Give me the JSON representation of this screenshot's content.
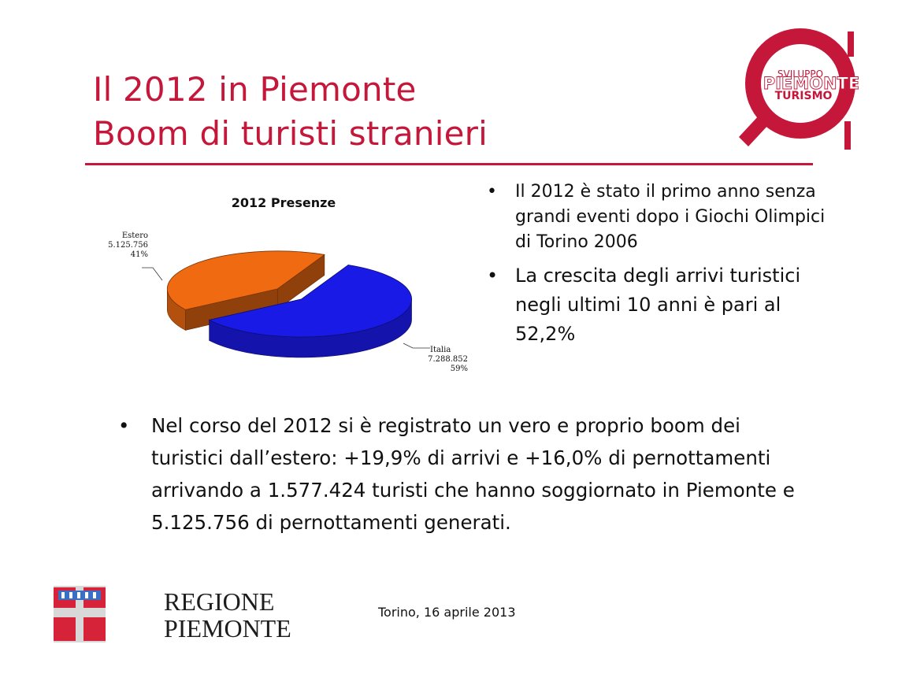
{
  "slide": {
    "title_line1": "Il 2012 in Piemonte",
    "title_line2": "Boom di turisti stranieri",
    "brand_logo": {
      "line1": "SVILUPPO",
      "line2": "PIEMONTE",
      "line3": "TURISMO",
      "color": "#c4173a"
    },
    "bullets_right": [
      "Il 2012 è stato il primo anno senza grandi eventi dopo i Giochi Olimpici di Torino 2006",
      "La crescita degli arrivi turistici negli ultimi 10 anni è pari al 52,2%"
    ],
    "bullet_bottom": "Nel corso del 2012 si è registrato un vero e proprio boom dei turistici dall’estero: +19,9% di arrivi e +16,0% di pernottamenti arrivando a 1.577.424 turisti che hanno soggiornato in Piemonte e 5.125.756 di pernottamenti generati.",
    "bullet_symbol": "•",
    "footer_date": "Torino, 16 aprile 2013",
    "region_logo": {
      "line1": "REGIONE",
      "line2": "PIEMONTE"
    }
  },
  "chart_data": {
    "type": "pie",
    "title": "2012 Presenze",
    "style": "3d-exploded",
    "slices": [
      {
        "name": "Italia",
        "value_text": "7.288.852",
        "value": 7288852,
        "percent_text": "59%",
        "percent": 59,
        "color": "#1a1ae6"
      },
      {
        "name": "Estero",
        "value_text": "5.125.756",
        "value": 5125756,
        "percent_text": "41%",
        "percent": 41,
        "color": "#f06a12"
      }
    ]
  }
}
